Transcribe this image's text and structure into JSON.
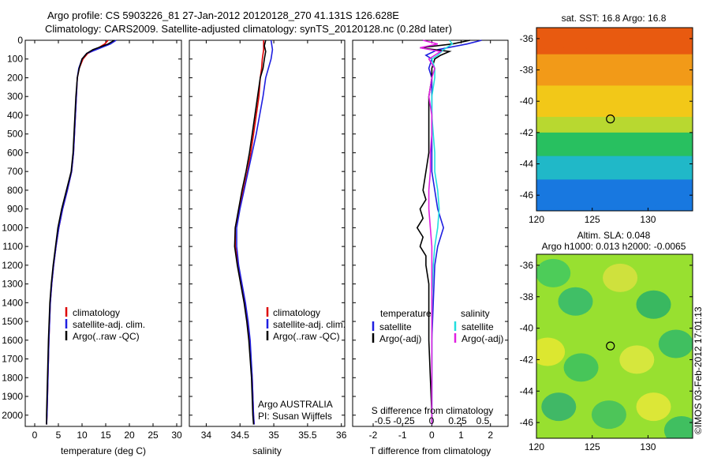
{
  "header": {
    "line1": "Argo profile: CS 5903226_81 27-Jan-2012 20120128_270 41.131S 126.628E",
    "line2": "Climatology: CARS2009. Satellite-adjusted climatology: synTS_20120128.nc (0.28d later)"
  },
  "side_label": "©IMOS 03-Feb-2012 17:01:13",
  "colors": {
    "red": "#dd0000",
    "blue": "#1f1fe0",
    "black": "#000000",
    "cyan": "#22dede",
    "magenta": "#e020e0"
  },
  "chart_data": [
    {
      "id": "temperature",
      "type": "line",
      "xlabel": "temperature (deg C)",
      "ylabel": "",
      "xlim": [
        -2,
        31
      ],
      "ylim": [
        2060,
        0
      ],
      "xticks": [
        "0",
        "5",
        "10",
        "15",
        "20",
        "25",
        "30"
      ],
      "xtick_values": [
        0,
        5,
        10,
        15,
        20,
        25,
        30
      ],
      "yticks": [
        "0",
        "100",
        "200",
        "300",
        "400",
        "500",
        "600",
        "700",
        "800",
        "900",
        "1000",
        "1100",
        "1200",
        "1300",
        "1400",
        "1500",
        "1600",
        "1700",
        "1800",
        "1900",
        "2000"
      ],
      "ytick_values": [
        0,
        100,
        200,
        300,
        400,
        500,
        600,
        700,
        800,
        900,
        1000,
        1100,
        1200,
        1300,
        1400,
        1500,
        1600,
        1700,
        1800,
        1900,
        2000
      ],
      "legend": [
        "climatology",
        "satellite-adj. clim.",
        "Argo(..raw -QC)"
      ],
      "series": [
        {
          "name": "climatology",
          "color": "red",
          "depth": [
            0,
            20,
            50,
            70,
            100,
            150,
            200,
            300,
            400,
            500,
            600,
            700,
            800,
            900,
            1000,
            1100,
            1200,
            1300,
            1400,
            1600,
            1800,
            2000,
            2050
          ],
          "values": [
            15.5,
            14.8,
            12.8,
            11.2,
            10.2,
            9.4,
            9.0,
            8.8,
            8.6,
            8.4,
            8.2,
            7.8,
            6.9,
            5.9,
            5.1,
            4.5,
            4.0,
            3.6,
            3.3,
            3.0,
            2.8,
            2.6,
            2.5
          ]
        },
        {
          "name": "satellite-adj. clim.",
          "color": "blue",
          "depth": [
            0,
            20,
            50,
            70,
            100,
            150,
            200,
            300,
            400,
            500,
            600,
            700,
            800,
            900,
            1000,
            1100,
            1200,
            1300,
            1400,
            1600,
            1800,
            2000,
            2050
          ],
          "values": [
            17.2,
            16.0,
            13.0,
            11.0,
            10.0,
            9.3,
            9.0,
            8.8,
            8.6,
            8.4,
            8.2,
            7.8,
            6.9,
            5.9,
            5.1,
            4.5,
            4.0,
            3.6,
            3.3,
            3.0,
            2.8,
            2.6,
            2.5
          ]
        },
        {
          "name": "Argo(..raw -QC)",
          "color": "black",
          "depth": [
            0,
            20,
            50,
            70,
            100,
            150,
            200,
            300,
            400,
            500,
            600,
            700,
            800,
            900,
            1000,
            1100,
            1200,
            1300,
            1400,
            1600,
            1800,
            2000,
            2050
          ],
          "values": [
            16.8,
            15.5,
            12.3,
            11.0,
            10.0,
            9.4,
            9.0,
            8.7,
            8.5,
            8.3,
            8.1,
            7.7,
            6.7,
            5.7,
            4.9,
            4.4,
            3.9,
            3.5,
            3.2,
            2.9,
            2.7,
            2.5,
            2.5
          ]
        }
      ]
    },
    {
      "id": "salinity",
      "type": "line",
      "xlabel": "salinity",
      "xlim": [
        33.75,
        36.05
      ],
      "ylim": [
        2060,
        0
      ],
      "xticks": [
        "34",
        "34.5",
        "35",
        "35.5",
        "36"
      ],
      "xtick_values": [
        34,
        34.5,
        35,
        35.5,
        36
      ],
      "legend": [
        "climatology",
        "satellite-adj. clim.",
        "Argo(..raw -QC)"
      ],
      "annotation_lines": [
        "Argo AUSTRALIA",
        "PI: Susan Wijffels"
      ],
      "series": [
        {
          "name": "climatology",
          "color": "red",
          "depth": [
            0,
            50,
            100,
            150,
            200,
            300,
            400,
            500,
            600,
            700,
            800,
            900,
            1000,
            1100,
            1200,
            1300,
            1400,
            1500,
            1600,
            1800,
            2000,
            2050
          ],
          "values": [
            34.85,
            34.85,
            34.83,
            34.82,
            34.8,
            34.78,
            34.74,
            34.7,
            34.66,
            34.61,
            34.55,
            34.49,
            34.43,
            34.43,
            34.47,
            34.52,
            34.57,
            34.61,
            34.64,
            34.68,
            34.7,
            34.71
          ]
        },
        {
          "name": "satellite-adj. clim.",
          "color": "blue",
          "depth": [
            0,
            50,
            100,
            150,
            200,
            300,
            400,
            500,
            600,
            700,
            800,
            900,
            1000,
            1100,
            1200,
            1300,
            1400,
            1500,
            1600,
            1800,
            2000,
            2050
          ],
          "values": [
            34.96,
            34.98,
            34.96,
            34.92,
            34.88,
            34.84,
            34.79,
            34.74,
            34.68,
            34.62,
            34.56,
            34.5,
            34.45,
            34.45,
            34.48,
            34.53,
            34.58,
            34.62,
            34.65,
            34.68,
            34.7,
            34.71
          ]
        },
        {
          "name": "Argo(..raw -QC)",
          "color": "black",
          "depth": [
            0,
            30,
            60,
            100,
            150,
            200,
            300,
            400,
            500,
            600,
            700,
            800,
            900,
            1000,
            1100,
            1200,
            1300,
            1400,
            1500,
            1600,
            1800,
            2000,
            2050
          ],
          "values": [
            34.88,
            34.86,
            34.88,
            34.86,
            34.84,
            34.8,
            34.76,
            34.72,
            34.68,
            34.64,
            34.59,
            34.53,
            34.48,
            34.43,
            34.42,
            34.46,
            34.51,
            34.56,
            34.6,
            34.63,
            34.67,
            34.69,
            34.7
          ]
        }
      ]
    },
    {
      "id": "differences",
      "type": "line",
      "xlabel": "T difference from climatology",
      "top_xlabel": "S difference from climatology",
      "xlim": [
        -2.7,
        2.6
      ],
      "ylim": [
        2060,
        0
      ],
      "xticks": [
        "-2",
        "-1",
        "0",
        "1",
        "2"
      ],
      "xtick_values": [
        -2,
        -1,
        0,
        1,
        2
      ],
      "top_xticks": [
        "-0.5",
        "-0.25",
        "0",
        "0.25",
        "0.5"
      ],
      "legend_temperature_title": "temperature",
      "legend_salinity_title": "salinity",
      "legend": [
        "satellite",
        "Argo(-adj)",
        "satellite",
        "Argo(-adj)"
      ],
      "series": [
        {
          "name": "satellite",
          "group": "temperature",
          "color": "blue",
          "depth": [
            0,
            20,
            50,
            80,
            100,
            150,
            200,
            300,
            400,
            500,
            600,
            700,
            800,
            900,
            1000,
            1100,
            1200,
            1400,
            1600,
            1800,
            2000,
            2050
          ],
          "values": [
            1.7,
            1.2,
            0.2,
            -0.2,
            0.0,
            -0.1,
            0.0,
            0.0,
            0.0,
            0.0,
            0.0,
            0.0,
            0.1,
            0.2,
            0.4,
            0.2,
            0.1,
            0.05,
            0.0,
            0.0,
            0.0,
            0.0
          ]
        },
        {
          "name": "Argo(-adj)",
          "group": "temperature",
          "color": "black",
          "depth": [
            0,
            20,
            40,
            60,
            80,
            100,
            150,
            200,
            300,
            400,
            500,
            600,
            700,
            800,
            850,
            900,
            950,
            1000,
            1050,
            1100,
            1150,
            1200,
            1300,
            1400,
            1600,
            1800,
            2000,
            2050
          ],
          "values": [
            1.3,
            0.7,
            -0.4,
            0.6,
            0.3,
            0.1,
            0.0,
            0.0,
            -0.1,
            -0.1,
            -0.1,
            -0.1,
            -0.2,
            -0.3,
            -0.2,
            -0.4,
            -0.3,
            -0.5,
            -0.3,
            -0.4,
            -0.2,
            -0.2,
            -0.1,
            -0.1,
            -0.1,
            -0.05,
            0.0,
            0.0
          ]
        },
        {
          "name": "satellite",
          "group": "salinity",
          "color": "cyan",
          "depth": [
            0,
            20,
            50,
            80,
            100,
            150,
            200,
            300,
            400,
            500,
            600,
            700,
            800,
            900,
            1000,
            1100,
            1200,
            1400,
            1600,
            1800,
            2000,
            2050
          ],
          "values": [
            0.6,
            0.7,
            0.4,
            0.2,
            0.0,
            0.1,
            0.1,
            0.0,
            0.0,
            0.05,
            0.1,
            0.1,
            0.2,
            0.25,
            0.2,
            0.1,
            0.05,
            0.0,
            0.0,
            0.0,
            0.0,
            0.0
          ]
        },
        {
          "name": "Argo(-adj)",
          "group": "salinity",
          "color": "magenta",
          "depth": [
            0,
            20,
            40,
            60,
            80,
            100,
            150,
            200,
            300,
            400,
            500,
            600,
            700,
            800,
            900,
            1000,
            1100,
            1200,
            1400,
            1600,
            1800,
            2000,
            2050
          ],
          "values": [
            -0.3,
            0.2,
            -0.4,
            0.3,
            0.1,
            -0.1,
            0.1,
            0.0,
            -0.1,
            0.0,
            0.0,
            -0.05,
            -0.05,
            -0.1,
            -0.1,
            -0.05,
            0.0,
            0.0,
            0.0,
            0.0,
            0.0,
            0.0,
            0.0
          ]
        }
      ]
    },
    {
      "id": "sst-map",
      "type": "heatmap",
      "title": "sat. SST: 16.8  Argo: 16.8",
      "xlim": [
        120,
        134
      ],
      "ylim": [
        -47,
        -35.3
      ],
      "xticks": [
        "120",
        "125",
        "130"
      ],
      "xtick_values": [
        120,
        125,
        130
      ],
      "yticks": [
        "-36",
        "-38",
        "-40",
        "-42",
        "-44",
        "-46"
      ],
      "ytick_values": [
        -36,
        -38,
        -40,
        -42,
        -44,
        -46
      ],
      "marker": {
        "lon": 126.628,
        "lat": -41.131
      },
      "bands": [
        {
          "lat_from": -35.3,
          "lat_to": -37.0,
          "color": "#e85a10"
        },
        {
          "lat_from": -37.0,
          "lat_to": -39.0,
          "color": "#f29a18"
        },
        {
          "lat_from": -39.0,
          "lat_to": -41.0,
          "color": "#f2c818"
        },
        {
          "lat_from": -41.0,
          "lat_to": -42.0,
          "color": "#b8d830"
        },
        {
          "lat_from": -42.0,
          "lat_to": -43.5,
          "color": "#28c060"
        },
        {
          "lat_from": -43.5,
          "lat_to": -45.0,
          "color": "#20b8c8"
        },
        {
          "lat_from": -45.0,
          "lat_to": -47.0,
          "color": "#1878e0"
        }
      ]
    },
    {
      "id": "sla-map",
      "type": "heatmap",
      "title": "Altim. SLA: 0.048",
      "subtitle": "Argo h1000: 0.013 h2000: -0.0065",
      "xlim": [
        120,
        134
      ],
      "ylim": [
        -47,
        -35.3
      ],
      "xticks": [
        "120",
        "125",
        "130"
      ],
      "xtick_values": [
        120,
        125,
        130
      ],
      "yticks": [
        "-36",
        "-38",
        "-40",
        "-42",
        "-44",
        "-46"
      ],
      "ytick_values": [
        -36,
        -38,
        -40,
        -42,
        -44,
        -46
      ],
      "marker": {
        "lon": 126.628,
        "lat": -41.131
      },
      "base_color": "#98e030",
      "blobs": [
        {
          "lon": 121.5,
          "lat": -36.5,
          "color": "#40c860"
        },
        {
          "lon": 123.5,
          "lat": -38.3,
          "color": "#30b870"
        },
        {
          "lon": 127.5,
          "lat": -36.8,
          "color": "#d8e040"
        },
        {
          "lon": 130.5,
          "lat": -38.5,
          "color": "#28b068"
        },
        {
          "lon": 121.0,
          "lat": -41.5,
          "color": "#e8e830"
        },
        {
          "lon": 124.0,
          "lat": -42.5,
          "color": "#38c060"
        },
        {
          "lon": 129.0,
          "lat": -42.0,
          "color": "#e0e840"
        },
        {
          "lon": 132.5,
          "lat": -41.0,
          "color": "#30b868"
        },
        {
          "lon": 122.0,
          "lat": -45.0,
          "color": "#30b070"
        },
        {
          "lon": 126.5,
          "lat": -45.5,
          "color": "#40c060"
        },
        {
          "lon": 130.5,
          "lat": -45.0,
          "color": "#e8e838"
        },
        {
          "lon": 133.0,
          "lat": -46.5,
          "color": "#30b868"
        }
      ]
    }
  ]
}
